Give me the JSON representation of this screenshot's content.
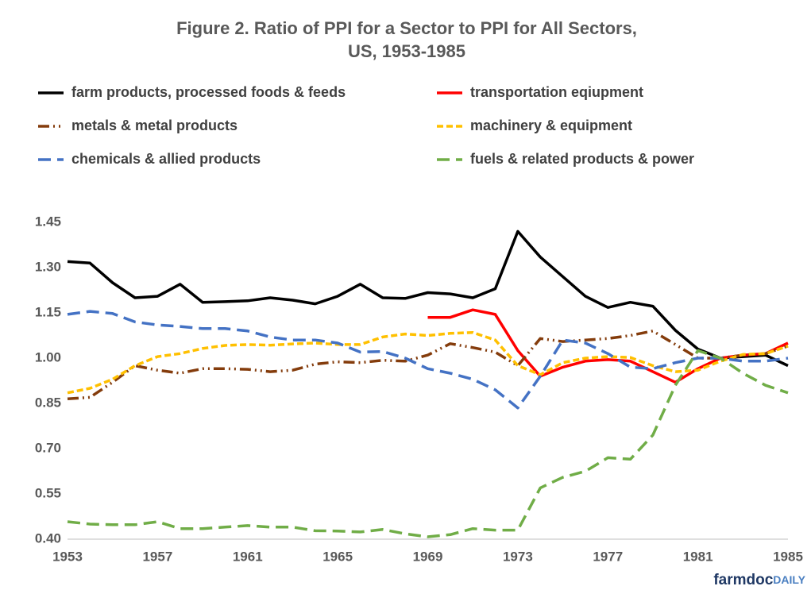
{
  "chart_data": {
    "type": "line",
    "title": [
      "Figure 2.  Ratio of PPI for a Sector to PPI for All Sectors,",
      "US, 1953-1985"
    ],
    "x": [
      1953,
      1954,
      1955,
      1956,
      1957,
      1958,
      1959,
      1960,
      1961,
      1962,
      1963,
      1964,
      1965,
      1966,
      1967,
      1968,
      1969,
      1970,
      1971,
      1972,
      1973,
      1974,
      1975,
      1976,
      1977,
      1978,
      1979,
      1980,
      1981,
      1982,
      1983,
      1984,
      1985
    ],
    "xlim": [
      1953,
      1985
    ],
    "xticks": [
      1953,
      1957,
      1961,
      1965,
      1969,
      1973,
      1977,
      1981,
      1985
    ],
    "ylim": [
      0.4,
      1.45
    ],
    "yticks": [
      {
        "value": 0.4,
        "label": "0.40"
      },
      {
        "value": 0.55,
        "label": "0.55"
      },
      {
        "value": 0.7,
        "label": "0.70"
      },
      {
        "value": 0.85,
        "label": "0.85"
      },
      {
        "value": 1.0,
        "label": "1.00"
      },
      {
        "value": 1.15,
        "label": "1.15"
      },
      {
        "value": 1.3,
        "label": "1.30"
      },
      {
        "value": 1.45,
        "label": "1.45"
      }
    ],
    "grid": false,
    "series": [
      {
        "name": "farm products, processed foods & feeds",
        "color": "#000000",
        "dash": "solid",
        "values": [
          1.32,
          1.315,
          1.25,
          1.2,
          1.205,
          1.245,
          1.185,
          1.187,
          1.19,
          1.2,
          1.192,
          1.18,
          1.205,
          1.245,
          1.2,
          1.198,
          1.217,
          1.213,
          1.2,
          1.23,
          1.42,
          1.335,
          1.27,
          1.205,
          1.168,
          1.185,
          1.172,
          1.092,
          1.03,
          1.0,
          1.005,
          1.01,
          0.975
        ]
      },
      {
        "name": "transportation eqiupment",
        "color": "#ff0000",
        "dash": "solid",
        "values": [
          null,
          null,
          null,
          null,
          null,
          null,
          null,
          null,
          null,
          null,
          null,
          null,
          null,
          null,
          null,
          null,
          1.135,
          1.135,
          1.16,
          1.145,
          1.025,
          0.94,
          0.97,
          0.99,
          0.995,
          0.99,
          0.955,
          0.92,
          0.965,
          1.0,
          1.01,
          1.015,
          1.05
        ]
      },
      {
        "name": "metals & metal products",
        "color": "#843c0c",
        "dash": "dashdot",
        "values": [
          0.865,
          0.87,
          0.92,
          0.975,
          0.96,
          0.95,
          0.965,
          0.965,
          0.963,
          0.955,
          0.96,
          0.98,
          0.988,
          0.985,
          0.993,
          0.99,
          1.01,
          1.048,
          1.035,
          1.02,
          0.975,
          1.065,
          1.055,
          1.06,
          1.065,
          1.075,
          1.09,
          1.045,
          1.0,
          1.0,
          1.01,
          1.015,
          1.04
        ]
      },
      {
        "name": "machinery & equipment",
        "color": "#ffc000",
        "dash": "dash",
        "values": [
          0.885,
          0.9,
          0.93,
          0.975,
          1.005,
          1.015,
          1.032,
          1.042,
          1.045,
          1.043,
          1.047,
          1.05,
          1.045,
          1.045,
          1.07,
          1.08,
          1.075,
          1.082,
          1.085,
          1.06,
          0.975,
          0.945,
          0.985,
          1.0,
          1.005,
          1.002,
          0.975,
          0.955,
          0.96,
          0.99,
          1.012,
          1.015,
          1.04
        ]
      },
      {
        "name": "chemicals & allied products",
        "color": "#4472c4",
        "dash": "longdash",
        "values": [
          1.145,
          1.155,
          1.148,
          1.12,
          1.11,
          1.105,
          1.098,
          1.098,
          1.09,
          1.07,
          1.06,
          1.06,
          1.05,
          1.02,
          1.022,
          1.0,
          0.965,
          0.95,
          0.93,
          0.895,
          0.835,
          0.94,
          1.06,
          1.05,
          1.015,
          0.97,
          0.965,
          0.985,
          1.0,
          1.0,
          0.99,
          0.99,
          1.0
        ]
      },
      {
        "name": "fuels & related products & power",
        "color": "#70ad47",
        "dash": "longdash",
        "values": [
          0.458,
          0.45,
          0.448,
          0.448,
          0.458,
          0.435,
          0.435,
          0.44,
          0.445,
          0.44,
          0.44,
          0.428,
          0.427,
          0.424,
          0.432,
          0.418,
          0.408,
          0.415,
          0.435,
          0.43,
          0.43,
          0.57,
          0.605,
          0.625,
          0.67,
          0.665,
          0.745,
          0.91,
          1.025,
          1.0,
          0.95,
          0.91,
          0.885
        ]
      }
    ],
    "brand": [
      "farmdoc",
      "DAILY"
    ]
  }
}
